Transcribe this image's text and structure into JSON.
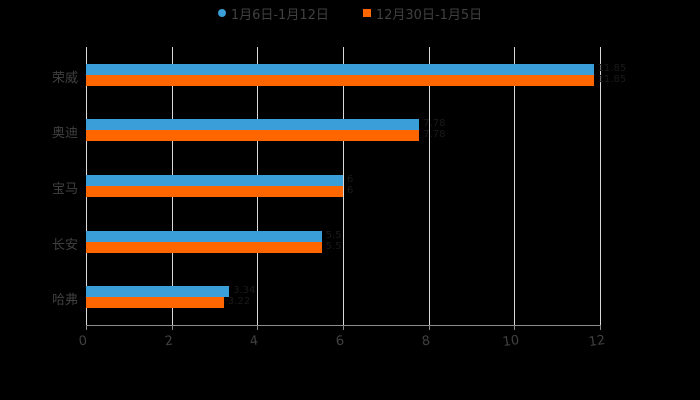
{
  "chart_data": {
    "type": "bar",
    "orientation": "horizontal",
    "title": "",
    "xlabel": "",
    "ylabel": "",
    "categories": [
      "荣威",
      "奥迪",
      "宝马",
      "长安",
      "哈弗"
    ],
    "series": [
      {
        "name": "1月6日-1月12日",
        "color": "#3a9fd8",
        "values": [
          11.85,
          7.78,
          6.0,
          5.5,
          3.34
        ]
      },
      {
        "name": "12月30日-1月5日",
        "color": "#ff6600",
        "values": [
          11.85,
          7.78,
          6.0,
          5.5,
          3.22
        ]
      }
    ],
    "xlim": [
      0,
      12
    ],
    "x_ticks": [
      "0",
      "2",
      "4",
      "6",
      "8",
      "10",
      "12"
    ],
    "grid": "vertical",
    "legend_position": "top",
    "background": "#000000"
  },
  "legend": {
    "items": [
      {
        "label": "1月6日-1月12日",
        "color": "#3a9fd8"
      },
      {
        "label": "12月30日-1月5日",
        "color": "#ff6600"
      }
    ]
  },
  "axis": {
    "ticks": [
      "0",
      "2",
      "4",
      "6",
      "8",
      "10",
      "12"
    ]
  },
  "categories": [
    "荣威",
    "奥迪",
    "宝马",
    "长安",
    "哈弗"
  ]
}
